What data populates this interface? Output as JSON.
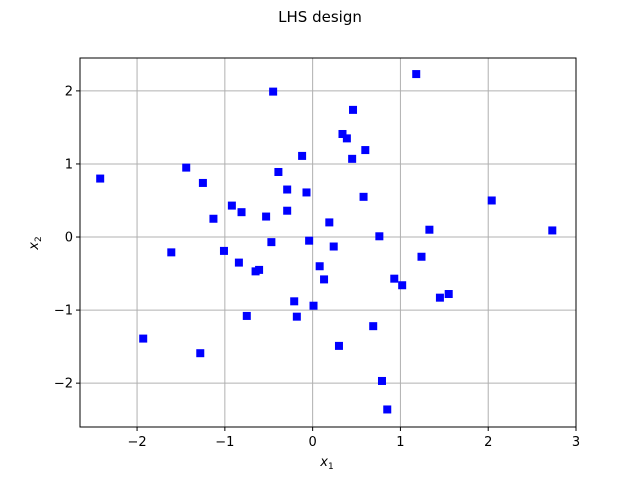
{
  "chart_data": {
    "type": "scatter",
    "title": "LHS design",
    "xlabel": "x",
    "xlabel_sub": "1",
    "ylabel": "x",
    "ylabel_sub": "2",
    "xlim": [
      -2.65,
      3.0
    ],
    "ylim": [
      -2.6,
      2.45
    ],
    "xticks": [
      -2,
      -1,
      0,
      1,
      2,
      3
    ],
    "yticks": [
      -2,
      -1,
      0,
      1,
      2
    ],
    "grid": true,
    "marker": "square",
    "marker_color": "#0000ff",
    "x": [
      -2.42,
      -1.93,
      -1.61,
      -1.44,
      -1.28,
      -1.25,
      -1.13,
      -1.01,
      -0.92,
      -0.84,
      -0.81,
      -0.75,
      -0.65,
      -0.61,
      -0.53,
      -0.47,
      -0.45,
      -0.39,
      -0.29,
      -0.29,
      -0.21,
      -0.18,
      -0.12,
      -0.07,
      -0.04,
      0.01,
      0.08,
      0.13,
      0.19,
      0.24,
      0.3,
      0.34,
      0.39,
      0.45,
      0.46,
      0.58,
      0.6,
      0.69,
      0.76,
      0.79,
      0.85,
      0.93,
      1.02,
      1.18,
      1.24,
      1.33,
      1.45,
      1.55,
      2.04,
      2.73
    ],
    "y": [
      0.8,
      -1.39,
      -0.21,
      0.95,
      -1.59,
      0.74,
      0.25,
      -0.19,
      0.43,
      -0.35,
      0.34,
      -1.08,
      -0.47,
      -0.45,
      0.28,
      -0.07,
      1.99,
      0.89,
      0.65,
      0.36,
      -0.88,
      -1.09,
      1.11,
      0.61,
      -0.05,
      -0.94,
      -0.4,
      -0.58,
      0.2,
      -0.13,
      -1.49,
      1.41,
      1.35,
      1.07,
      1.74,
      0.55,
      1.19,
      -1.22,
      0.01,
      -1.97,
      -2.36,
      -0.57,
      -0.66,
      2.23,
      -0.27,
      0.1,
      -0.83,
      -0.78,
      0.5,
      0.09
    ]
  }
}
